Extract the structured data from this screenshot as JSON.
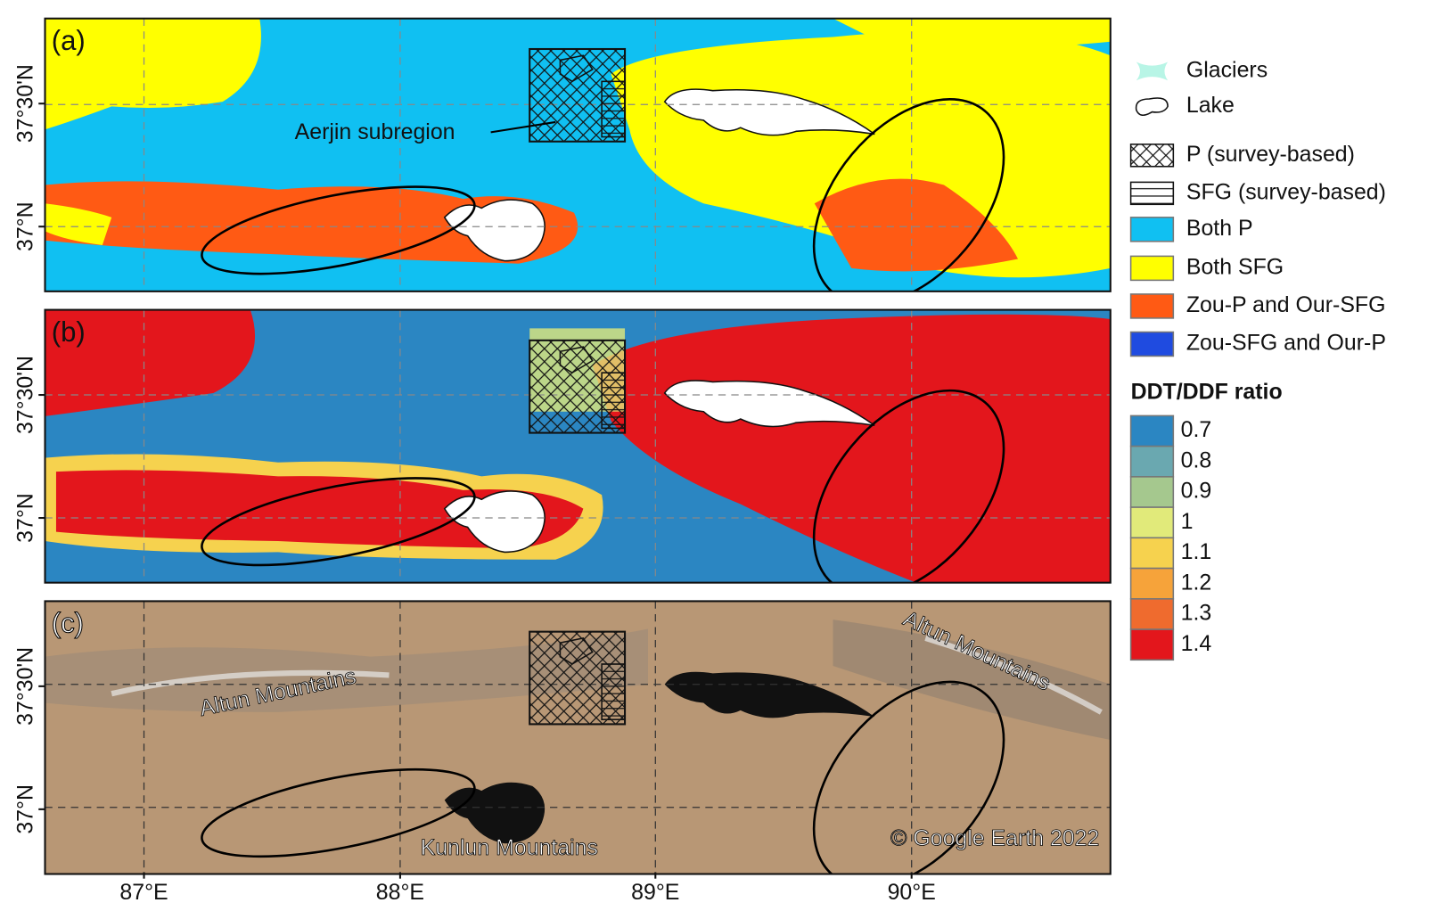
{
  "panels": [
    {
      "label": "(a)"
    },
    {
      "label": "(b)"
    },
    {
      "label": "(c)"
    }
  ],
  "annotations": {
    "aerjin": "Aerjin subregion",
    "altun_west": "Altun Mountains",
    "altun_east": "Altun Mountains",
    "kunlun": "Kunlun Mountains",
    "credit": "© Google Earth 2022"
  },
  "x_ticks": [
    "87°E",
    "88°E",
    "89°E",
    "90°E"
  ],
  "y_ticks": [
    "37°30'N",
    "37°N"
  ],
  "legend": {
    "items": [
      {
        "label": "Glaciers"
      },
      {
        "label": "Lake"
      },
      {
        "label": "P (survey-based)"
      },
      {
        "label": "SFG (survey-based)"
      },
      {
        "label": "Both P",
        "color": "#10c0f2"
      },
      {
        "label": "Both SFG",
        "color": "#ffff00"
      },
      {
        "label": "Zou-P and Our-SFG",
        "color": "#ff5a14"
      },
      {
        "label": "Zou-SFG and Our-P",
        "color": "#1f4be0"
      }
    ]
  },
  "ratio_legend": {
    "title": "DDT/DDF ratio",
    "items": [
      {
        "value": 0.7,
        "color": "#2b86c2"
      },
      {
        "value": 0.8,
        "color": "#6aa8b0"
      },
      {
        "value": 0.9,
        "color": "#a5c88e"
      },
      {
        "value": 1,
        "color": "#e1ea7a"
      },
      {
        "value": 1.1,
        "color": "#f6d24e"
      },
      {
        "value": 1.2,
        "color": "#f6a33a"
      },
      {
        "value": 1.3,
        "color": "#ef6b2e"
      },
      {
        "value": 1.4,
        "color": "#e3161c"
      }
    ]
  }
}
